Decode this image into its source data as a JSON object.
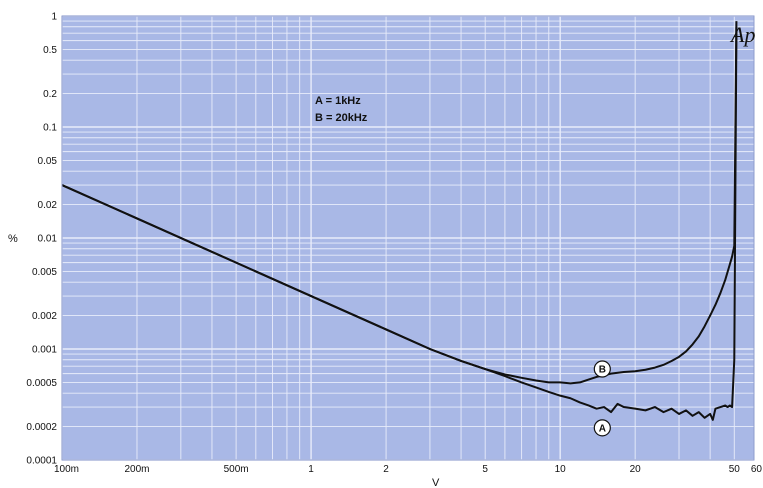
{
  "chart_data": {
    "type": "line",
    "xscale": "log",
    "yscale": "log",
    "xlim": [
      0.1,
      60
    ],
    "ylim": [
      0.0001,
      1
    ],
    "xlabel": "V",
    "ylabel": "%",
    "grid": true,
    "background_color": "#a9b8e6",
    "grid_color": "#e8ecfa",
    "line_color": "#111111",
    "x_tick_labels": [
      {
        "value": 0.1,
        "label": "100m"
      },
      {
        "value": 0.2,
        "label": "200m"
      },
      {
        "value": 0.5,
        "label": "500m"
      },
      {
        "value": 1,
        "label": "1"
      },
      {
        "value": 2,
        "label": "2"
      },
      {
        "value": 5,
        "label": "5"
      },
      {
        "value": 10,
        "label": "10"
      },
      {
        "value": 20,
        "label": "20"
      },
      {
        "value": 50,
        "label": "50"
      },
      {
        "value": 60,
        "label": "60"
      }
    ],
    "y_tick_labels": [
      {
        "value": 1,
        "label": "1"
      },
      {
        "value": 0.5,
        "label": "0.5"
      },
      {
        "value": 0.2,
        "label": "0.2"
      },
      {
        "value": 0.1,
        "label": "0.1"
      },
      {
        "value": 0.05,
        "label": "0.05"
      },
      {
        "value": 0.02,
        "label": "0.02"
      },
      {
        "value": 0.01,
        "label": "0.01"
      },
      {
        "value": 0.005,
        "label": "0.005"
      },
      {
        "value": 0.002,
        "label": "0.002"
      },
      {
        "value": 0.001,
        "label": "0.001"
      },
      {
        "value": 0.0005,
        "label": "0.0005"
      },
      {
        "value": 0.0002,
        "label": "0.0002"
      },
      {
        "value": 0.0001,
        "label": "0.0001"
      }
    ],
    "legend": [
      "A = 1kHz",
      "B = 20kHz"
    ],
    "legend_position": "top-center",
    "logo_text": "Ap",
    "series": [
      {
        "name": "A",
        "x": [
          0.1,
          0.2,
          0.5,
          1,
          2,
          3,
          4,
          5,
          6,
          7,
          8,
          9,
          10,
          11,
          12,
          13,
          14,
          15,
          16,
          17,
          18,
          20,
          22,
          24,
          26,
          28,
          30,
          32,
          34,
          36,
          38,
          40,
          41,
          42,
          44,
          46,
          47,
          48,
          49,
          50,
          51
        ],
        "y": [
          0.03,
          0.015,
          0.006,
          0.003,
          0.0015,
          0.001,
          0.00078,
          0.00066,
          0.00057,
          0.0005,
          0.00045,
          0.00041,
          0.00038,
          0.00036,
          0.00033,
          0.00031,
          0.00029,
          0.0003,
          0.00027,
          0.00032,
          0.0003,
          0.00029,
          0.00028,
          0.0003,
          0.00027,
          0.00029,
          0.00026,
          0.00028,
          0.00025,
          0.00027,
          0.00024,
          0.00026,
          0.00023,
          0.00029,
          0.0003,
          0.00031,
          0.0003,
          0.00031,
          0.0003,
          0.0008,
          0.8
        ]
      },
      {
        "name": "B",
        "x": [
          0.1,
          0.2,
          0.5,
          1,
          2,
          3,
          4,
          5,
          6,
          7,
          8,
          9,
          10,
          11,
          12,
          13,
          14,
          16,
          18,
          20,
          22,
          24,
          26,
          28,
          30,
          32,
          34,
          36,
          38,
          40,
          42,
          44,
          46,
          48,
          49,
          50,
          51
        ],
        "y": [
          0.03,
          0.015,
          0.006,
          0.003,
          0.0015,
          0.001,
          0.00078,
          0.00066,
          0.00059,
          0.00055,
          0.00052,
          0.0005,
          0.0005,
          0.00049,
          0.0005,
          0.00053,
          0.00056,
          0.0006,
          0.00062,
          0.00063,
          0.00065,
          0.00068,
          0.00072,
          0.00078,
          0.00085,
          0.00095,
          0.0011,
          0.0013,
          0.0016,
          0.002,
          0.0025,
          0.0032,
          0.0042,
          0.0058,
          0.0068,
          0.0085,
          0.9
        ]
      }
    ],
    "series_labels": [
      {
        "series": "A",
        "x": 12.5,
        "y": 0.00023
      },
      {
        "series": "B",
        "x": 12.5,
        "y": 0.00066
      }
    ]
  }
}
